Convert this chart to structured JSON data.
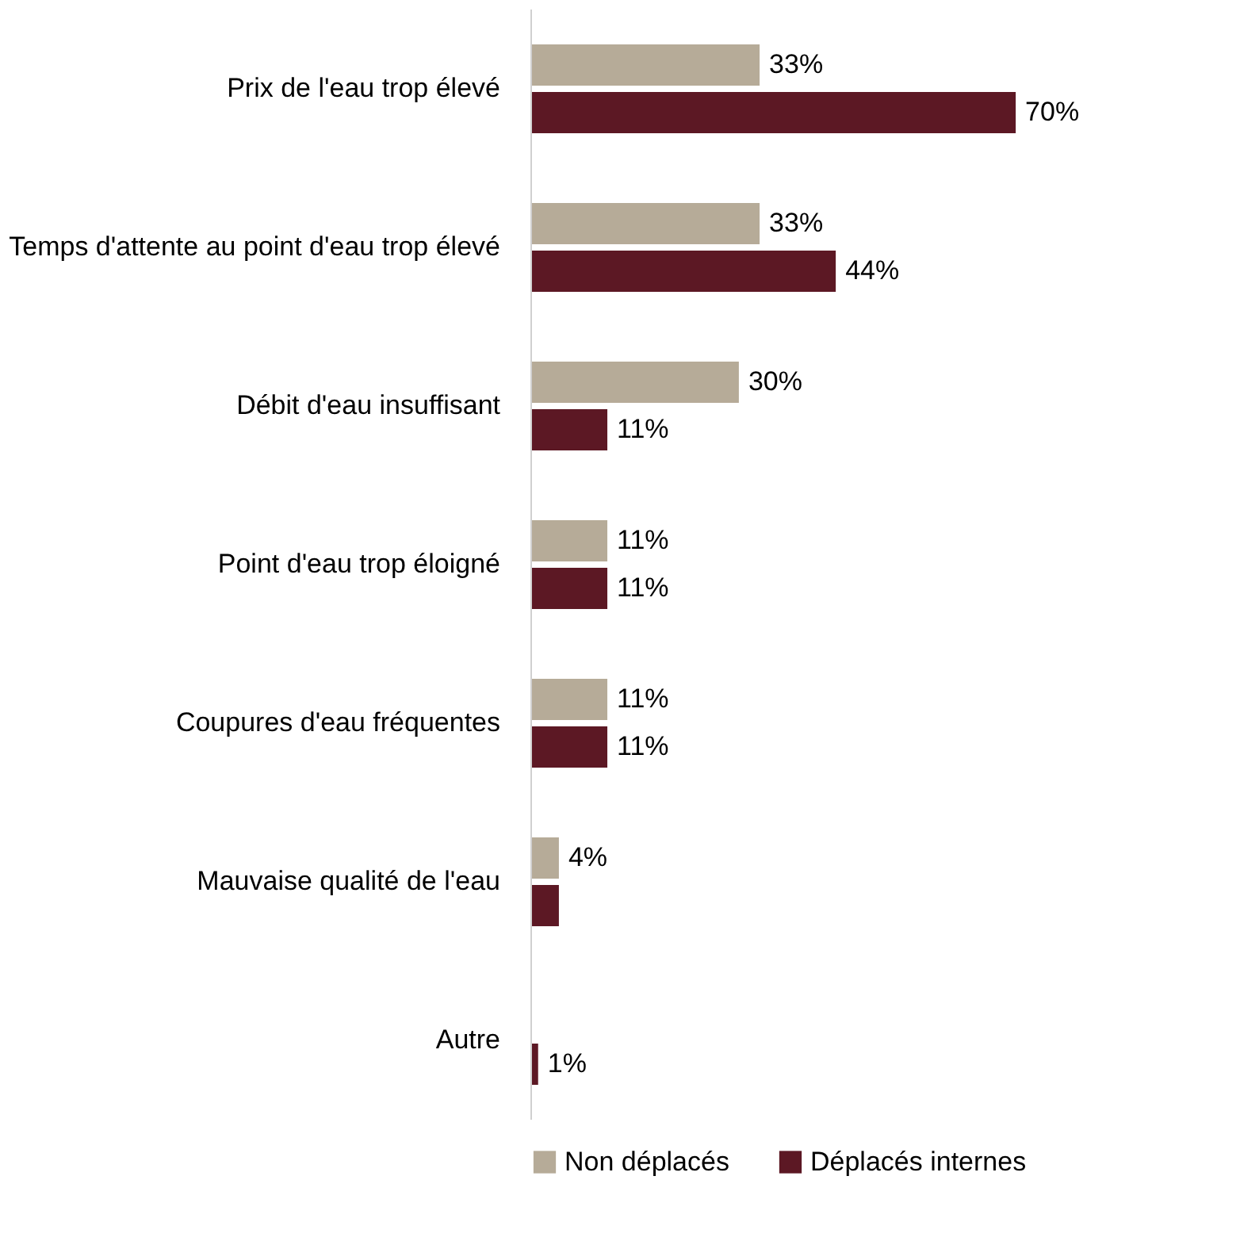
{
  "chart_data": {
    "type": "bar",
    "orientation": "horizontal",
    "categories": [
      "Prix de l'eau trop élevé",
      "Temps d'attente au point d'eau trop élevé",
      "Débit d'eau insuffisant",
      "Point d'eau trop éloigné",
      "Coupures d'eau fréquentes",
      "Mauvaise qualité de l'eau",
      "Autre"
    ],
    "series": [
      {
        "name": "Non déplacés",
        "color": "#b6ab98",
        "values": [
          33,
          33,
          30,
          11,
          11,
          4,
          null
        ],
        "value_labels": [
          "33%",
          "33%",
          "30%",
          "11%",
          "11%",
          "4%",
          null
        ]
      },
      {
        "name": "Déplacés internes",
        "color": "#5c1824",
        "values": [
          70,
          44,
          11,
          11,
          11,
          4,
          1
        ],
        "value_labels": [
          "70%",
          "44%",
          "11%",
          "11%",
          "11%",
          null,
          "1%"
        ]
      }
    ],
    "legend": "bottom"
  }
}
